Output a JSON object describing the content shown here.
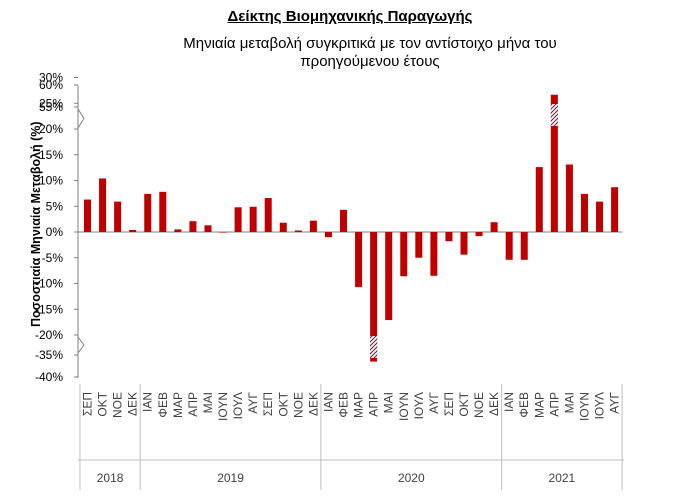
{
  "chart_data": {
    "type": "bar",
    "title": "Δείκτης Βιομηχανικής Παραγωγής",
    "subtitle": "Μηνιαία μεταβολή συγκριτικά με τον αντίστοιχο μήνα του προηγούμενου έτους",
    "xlabel": "",
    "ylabel": "Ποσοστιαία Μηνιαία Μεταβολή (%)",
    "ylim": [
      -40,
      60
    ],
    "y_axis_break": {
      "upper": [
        30,
        55
      ],
      "lower": [
        -35,
        -20
      ]
    },
    "y_ticks": [
      "60%",
      "55%",
      "30%",
      "25%",
      "20%",
      "15%",
      "10%",
      "5%",
      "0%",
      "-5%",
      "-10%",
      "-15%",
      "-20%",
      "-35%",
      "-40%"
    ],
    "bar_color": "#c00000",
    "grid": false,
    "legend": "none",
    "categories": [
      "ΣΕΠ",
      "ΟΚΤ",
      "ΝΟΕ",
      "ΔΕΚ",
      "ΙΑΝ",
      "ΦΕΒ",
      "ΜΑΡ",
      "ΑΠΡ",
      "ΜΑΙ",
      "ΙΟΥΝ",
      "ΙΟΥΛ",
      "ΑΥΓ",
      "ΣΕΠ",
      "ΟΚΤ",
      "ΝΟΕ",
      "ΔΕΚ",
      "ΙΑΝ",
      "ΦΕΒ",
      "ΜΑΡ",
      "ΑΠΡ",
      "ΜΑΙ",
      "ΙΟΥΝ",
      "ΙΟΥΛ",
      "ΑΥΓ",
      "ΣΕΠ",
      "ΟΚΤ",
      "ΝΟΕ",
      "ΔΕΚ",
      "ΙΑΝ",
      "ΦΕΒ",
      "ΜΑΡ",
      "ΑΠΡ",
      "ΜΑΙ",
      "ΙΟΥΝ",
      "ΙΟΥΛ",
      "ΑΥΓ"
    ],
    "values": [
      6.3,
      10.4,
      5.9,
      0.4,
      7.4,
      7.8,
      0.5,
      2.1,
      1.3,
      0.0,
      4.8,
      4.9,
      6.6,
      1.8,
      0.3,
      2.2,
      -1.0,
      4.3,
      -10.7,
      -36.5,
      -17.1,
      -8.6,
      -5.0,
      -8.5,
      -1.8,
      -4.4,
      -0.8,
      1.9,
      -5.4,
      -5.4,
      12.6,
      57.8,
      13.1,
      7.4,
      5.9,
      8.7
    ],
    "groups": [
      {
        "label": "2018",
        "count": 4
      },
      {
        "label": "2019",
        "count": 12
      },
      {
        "label": "2020",
        "count": 12
      },
      {
        "label": "2021",
        "count": 8
      }
    ]
  }
}
